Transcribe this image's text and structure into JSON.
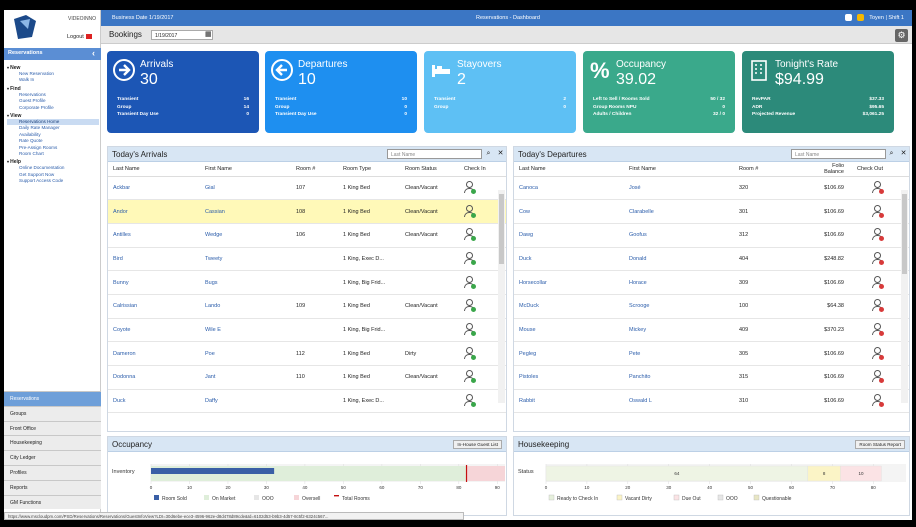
{
  "sidebar": {
    "brand": "VIDEOINNO",
    "logout": "Logout",
    "section": "Reservations",
    "groups": [
      {
        "label": "New",
        "items": [
          "New Reservation",
          "Walk In"
        ]
      },
      {
        "label": "Find",
        "items": [
          "Reservations",
          "Guest Profile",
          "Corporate Profile"
        ]
      },
      {
        "label": "View",
        "items": [
          "Reservations Home",
          "Daily Rate Manager",
          "Availability",
          "Rate Quote",
          "Pre-Assign Rooms",
          "Room Chart"
        ]
      },
      {
        "label": "Help",
        "items": [
          "Online Documentation",
          "Get Support Now",
          "Support Access Code"
        ]
      }
    ],
    "selected_item": "Reservations Home",
    "modules": [
      "Reservations",
      "Groups",
      "Front Office",
      "Housekeeping",
      "City Ledger",
      "Profiles",
      "Reports",
      "GM Functions"
    ]
  },
  "topbar": {
    "business_date": "Business Date 1/19/2017",
    "title": "Reservations - Dashboard",
    "user": "Toyen | Shift 1"
  },
  "bookings": {
    "label": "Bookings",
    "date": "1/19/2017"
  },
  "cards": [
    {
      "title": "Arrivals",
      "value": "30",
      "color": "#1c56b5",
      "icon": "arrow-right-icon",
      "rows": [
        [
          "Transient",
          "16"
        ],
        [
          "Group",
          "14"
        ],
        [
          "Transient Day Use",
          "0"
        ]
      ]
    },
    {
      "title": "Departures",
      "value": "10",
      "color": "#1e8ff0",
      "icon": "arrow-left-icon",
      "rows": [
        [
          "Transient",
          "10"
        ],
        [
          "Group",
          "0"
        ],
        [
          "Transient Day Use",
          "0"
        ]
      ]
    },
    {
      "title": "Stayovers",
      "value": "2",
      "color": "#5ec0f4",
      "icon": "bed-icon",
      "rows": [
        [
          "Transient",
          "2"
        ],
        [
          "Group",
          "0"
        ]
      ]
    },
    {
      "title": "Occupancy",
      "value": "39.02",
      "color": "#3aa98b",
      "icon": "percent-icon",
      "rows": [
        [
          "Left to Sell / Rooms Sold",
          "50 / 32"
        ],
        [
          "Group Rooms NPU",
          "0"
        ],
        [
          "Adults / Children",
          "32 / 0"
        ]
      ]
    },
    {
      "title": "Tonight's Rate",
      "value": "$94.99",
      "color": "#2c8a7a",
      "icon": "building-icon",
      "rows": [
        [
          "RevPAR",
          "$37.33"
        ],
        [
          "ADR",
          "$95.65"
        ],
        [
          "Projected Revenue",
          "$3,061.25"
        ]
      ]
    }
  ],
  "arrivals": {
    "title": "Today's Arrivals",
    "search_placeholder": "Last Name",
    "columns": [
      "Last Name",
      "First Name",
      "Room #",
      "Room Type",
      "Room Status",
      "Check In"
    ],
    "rows": [
      [
        "Ackbar",
        "Gial",
        "107",
        "1 King Bed",
        "Clean/Vacant"
      ],
      [
        "Andor",
        "Cassian",
        "108",
        "1 King Bed",
        "Clean/Vacant"
      ],
      [
        "Antilles",
        "Wedge",
        "106",
        "1 King Bed",
        "Clean/Vacant"
      ],
      [
        "Bird",
        "Tweety",
        "",
        "1 King, Exec D...",
        ""
      ],
      [
        "Bunny",
        "Bugs",
        "",
        "1 King, Big Frid...",
        ""
      ],
      [
        "Calrissian",
        "Lando",
        "109",
        "1 King Bed",
        "Clean/Vacant"
      ],
      [
        "Coyote",
        "Wile E",
        "",
        "1 King, Big Frid...",
        ""
      ],
      [
        "Dameron",
        "Poe",
        "112",
        "1 King Bed",
        "Dirty"
      ],
      [
        "Dodonna",
        "Jant",
        "110",
        "1 King Bed",
        "Clean/Vacant"
      ],
      [
        "Duck",
        "Daffy",
        "",
        "1 King, Exec D...",
        ""
      ]
    ]
  },
  "departures": {
    "title": "Today's Departures",
    "search_placeholder": "Last Name",
    "columns": [
      "Last Name",
      "First Name",
      "Room #",
      "Folio Balance",
      "Check Out"
    ],
    "rows": [
      [
        "Canoca",
        "José",
        "320",
        "$106.69"
      ],
      [
        "Cow",
        "Clarabelle",
        "301",
        "$106.69"
      ],
      [
        "Dawg",
        "Goofus",
        "312",
        "$106.69"
      ],
      [
        "Duck",
        "Donald",
        "404",
        "$248.82"
      ],
      [
        "Horsecollar",
        "Horace",
        "309",
        "$106.69"
      ],
      [
        "McDuck",
        "Scrooge",
        "100",
        "$64.38"
      ],
      [
        "Mouse",
        "Mickey",
        "409",
        "$370.23"
      ],
      [
        "Pegleg",
        "Pete",
        "305",
        "$106.69"
      ],
      [
        "Pistoles",
        "Panchito",
        "315",
        "$106.69"
      ],
      [
        "Rabbit",
        "Oswald L",
        "310",
        "$106.69"
      ]
    ]
  },
  "occupancy": {
    "title": "Occupancy",
    "button": "In-House Guest List",
    "category": "Inventory",
    "ticks": [
      "0",
      "10",
      "20",
      "30",
      "40",
      "50",
      "60",
      "70",
      "80",
      "90"
    ],
    "legend": [
      "Room Sold",
      "On Market",
      "OOO",
      "Oversell",
      "Total Rooms"
    ]
  },
  "housekeeping": {
    "title": "Housekeeping",
    "button": "Room Status Report",
    "category": "Status",
    "segment_labels": [
      "64",
      "8",
      "10"
    ],
    "ticks": [
      "0",
      "10",
      "20",
      "30",
      "40",
      "50",
      "60",
      "70",
      "80"
    ],
    "legend": [
      "Ready to Check In",
      "Vacant Dirty",
      "Due Out",
      "OOO",
      "Questionable"
    ]
  },
  "chart_data": [
    {
      "type": "bar",
      "title": "Occupancy",
      "categories": [
        "Inventory"
      ],
      "series": [
        {
          "name": "Room Sold",
          "values": [
            32
          ]
        },
        {
          "name": "On Market",
          "values": [
            50
          ]
        },
        {
          "name": "Oversell",
          "values": [
            10
          ]
        },
        {
          "name": "Total Rooms",
          "values": [
            82
          ]
        }
      ],
      "xlim": [
        0,
        92
      ]
    },
    {
      "type": "bar",
      "title": "Housekeeping",
      "categories": [
        "Status"
      ],
      "series": [
        {
          "name": "Ready to Check In",
          "values": [
            64
          ]
        },
        {
          "name": "Vacant Dirty",
          "values": [
            8
          ]
        },
        {
          "name": "Due Out",
          "values": [
            10
          ]
        }
      ],
      "xlim": [
        0,
        88
      ]
    }
  ],
  "status_url": "https://www.mscloudpm.com/PSD/Reservations/Reservations/GuestInfoView?LDI=30d6ebe-ece3-4596-962e-d8d478d89cde&Id=6102d53-b9b3-4d57-8c5f2-6324c567..."
}
